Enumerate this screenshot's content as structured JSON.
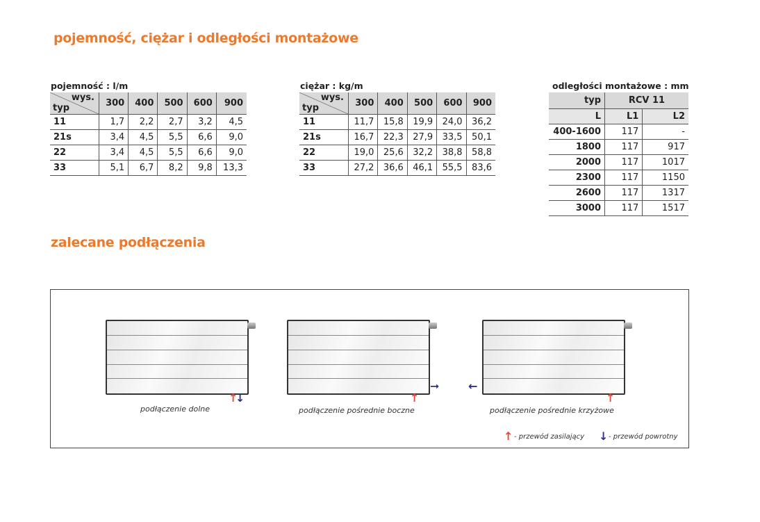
{
  "heading1": "pojemność, ciężar i odległości montażowe",
  "heading2": "zalecane podłączenia",
  "capacity": {
    "title": "pojemność : l/m",
    "corner_top": "wys.",
    "corner_bottom": "typ",
    "cols": [
      "300",
      "400",
      "500",
      "600",
      "900"
    ],
    "rows": [
      [
        "11",
        "1,7",
        "2,2",
        "2,7",
        "3,2",
        "4,5"
      ],
      [
        "21s",
        "3,4",
        "4,5",
        "5,5",
        "6,6",
        "9,0"
      ],
      [
        "22",
        "3,4",
        "4,5",
        "5,5",
        "6,6",
        "9,0"
      ],
      [
        "33",
        "5,1",
        "6,7",
        "8,2",
        "9,8",
        "13,3"
      ]
    ]
  },
  "weight": {
    "title": "ciężar : kg/m",
    "corner_top": "wys.",
    "corner_bottom": "typ",
    "cols": [
      "300",
      "400",
      "500",
      "600",
      "900"
    ],
    "rows": [
      [
        "11",
        "11,7",
        "15,8",
        "19,9",
        "24,0",
        "36,2"
      ],
      [
        "21s",
        "16,7",
        "22,3",
        "27,9",
        "33,5",
        "50,1"
      ],
      [
        "22",
        "19,0",
        "25,6",
        "32,2",
        "38,8",
        "58,8"
      ],
      [
        "33",
        "27,2",
        "36,6",
        "46,1",
        "55,5",
        "83,6"
      ]
    ]
  },
  "mounting": {
    "title": "odległości montażowe : mm",
    "typ_label": "typ",
    "model": "RCV 11",
    "cols": [
      "L",
      "L1",
      "L2"
    ],
    "rows": [
      [
        "400-1600",
        "117",
        "-"
      ],
      [
        "1800",
        "117",
        "917"
      ],
      [
        "2000",
        "117",
        "1017"
      ],
      [
        "2300",
        "117",
        "1150"
      ],
      [
        "2600",
        "117",
        "1317"
      ],
      [
        "3000",
        "117",
        "1517"
      ]
    ]
  },
  "connections": [
    {
      "label": "podłączenie dolne"
    },
    {
      "label": "podłączenie pośrednie boczne"
    },
    {
      "label": "podłączenie pośrednie krzyżowe"
    }
  ],
  "legend": {
    "supply": "- przewód zasilający",
    "return": "- przewód powrotny"
  },
  "colors": {
    "accent": "#ec7a2c",
    "supply": "#e5473a",
    "return": "#2e2f8a"
  }
}
